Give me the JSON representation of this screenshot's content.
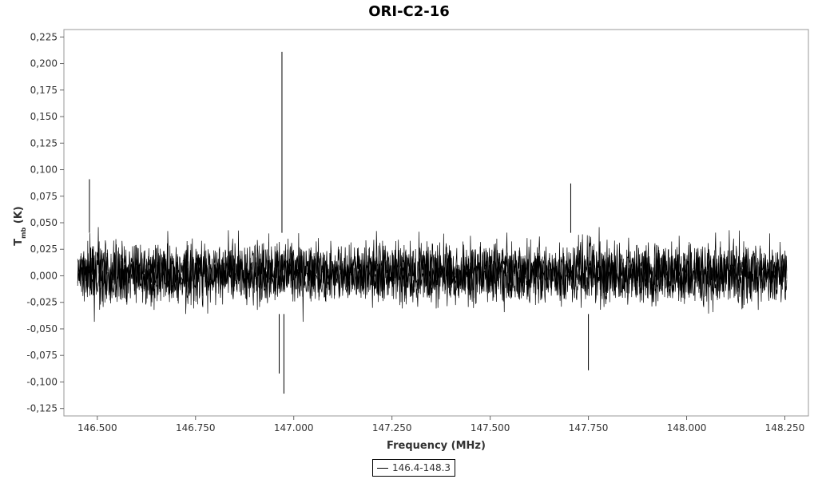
{
  "chart_data": {
    "type": "line",
    "title": "ORI-C2-16",
    "xlabel": "Frequency (MHz)",
    "ylabel": {
      "main": "T",
      "subscript": "mb",
      "unit": " (K)"
    },
    "xlim": [
      146.415,
      148.31
    ],
    "ylim": [
      -0.132,
      0.232
    ],
    "x_ticks": [
      146.5,
      146.75,
      147.0,
      147.25,
      147.5,
      147.75,
      148.0,
      148.25
    ],
    "x_tick_labels": [
      "146.500",
      "146.750",
      "147.000",
      "147.250",
      "147.500",
      "147.750",
      "148.000",
      "148.250"
    ],
    "y_ticks": [
      -0.125,
      -0.1,
      -0.075,
      -0.05,
      -0.025,
      0.0,
      0.025,
      0.05,
      0.075,
      0.1,
      0.125,
      0.15,
      0.175,
      0.2,
      0.225
    ],
    "y_tick_labels": [
      "-0,125",
      "-0,100",
      "-0,075",
      "-0,050",
      "-0,025",
      "0,000",
      "0,025",
      "0,050",
      "0,075",
      "0,100",
      "0,125",
      "0,150",
      "0,175",
      "0,200",
      "0,225"
    ],
    "x_range_data": [
      146.45,
      148.255
    ],
    "noise_envelope": [
      -0.04,
      0.045
    ],
    "notable_peaks": [
      {
        "x": 146.97,
        "y": 0.211
      },
      {
        "x": 146.975,
        "y": -0.111
      },
      {
        "x": 146.963,
        "y": -0.092
      },
      {
        "x": 146.48,
        "y": 0.091
      },
      {
        "x": 147.75,
        "y": -0.089
      },
      {
        "x": 147.705,
        "y": 0.087
      }
    ],
    "series": [
      {
        "name": "146.4-148.3",
        "color": "#000000"
      }
    ],
    "legend_position": "bottom-center",
    "grid": false
  }
}
